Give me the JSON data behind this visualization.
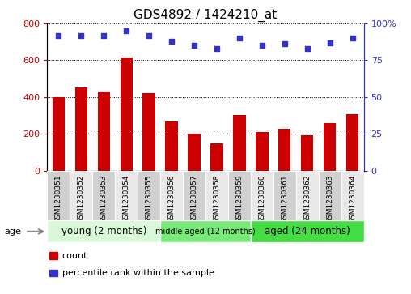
{
  "title": "GDS4892 / 1424210_at",
  "samples": [
    "GSM1230351",
    "GSM1230352",
    "GSM1230353",
    "GSM1230354",
    "GSM1230355",
    "GSM1230356",
    "GSM1230357",
    "GSM1230358",
    "GSM1230359",
    "GSM1230360",
    "GSM1230361",
    "GSM1230362",
    "GSM1230363",
    "GSM1230364"
  ],
  "counts": [
    400,
    450,
    430,
    615,
    420,
    265,
    200,
    150,
    300,
    210,
    225,
    190,
    260,
    305
  ],
  "percentiles": [
    92,
    92,
    92,
    95,
    92,
    88,
    85,
    83,
    90,
    85,
    86,
    83,
    87,
    90
  ],
  "bar_color": "#cc0000",
  "dot_color": "#3333cc",
  "ylim_left": [
    0,
    800
  ],
  "ylim_right": [
    0,
    100
  ],
  "yticks_left": [
    0,
    200,
    400,
    600,
    800
  ],
  "yticks_right": [
    0,
    25,
    50,
    75,
    100
  ],
  "groups": [
    {
      "label": "young (2 months)",
      "start": 0,
      "end": 5,
      "color": "#d8f8d8"
    },
    {
      "label": "middle aged (12 months)",
      "start": 5,
      "end": 9,
      "color": "#78e878"
    },
    {
      "label": "aged (24 months)",
      "start": 9,
      "end": 14,
      "color": "#44dd44"
    }
  ],
  "age_label": "age",
  "legend_count_label": "count",
  "legend_percentile_label": "percentile rank within the sample",
  "title_fontsize": 11,
  "tick_fontsize": 6.5,
  "label_fontsize": 8,
  "cell_color_odd": "#d0d0d0",
  "cell_color_even": "#e8e8e8"
}
